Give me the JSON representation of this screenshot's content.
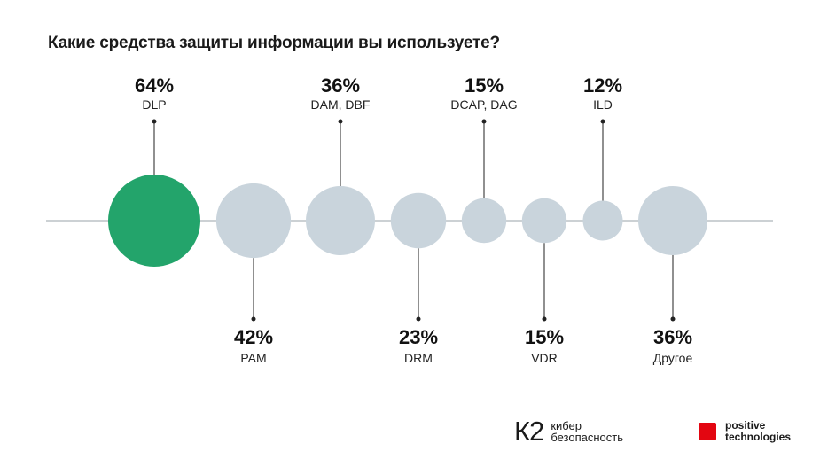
{
  "title": "Какие средства защиты информации вы используете?",
  "chart_data": {
    "type": "bubble",
    "title": "Какие средства защиты информации вы используете?",
    "categories": [
      "DLP",
      "PAM",
      "DAM, DBF",
      "DRM",
      "DCAP, DAG",
      "VDR",
      "ILD",
      "Другое"
    ],
    "values": [
      64,
      42,
      36,
      23,
      15,
      15,
      12,
      36
    ],
    "value_labels": [
      "64%",
      "42%",
      "36%",
      "23%",
      "15%",
      "15%",
      "12%",
      "36%"
    ],
    "label_side": [
      "top",
      "bottom",
      "top",
      "bottom",
      "top",
      "bottom",
      "top",
      "bottom"
    ],
    "highlight_index": 0
  },
  "colors": {
    "highlight": "#23a46b",
    "bubble": "#c9d4dc",
    "axis": "#9aa3aa",
    "stem": "#222222",
    "brand_red": "#e30611"
  },
  "footer": {
    "k2_mark": "К2",
    "k2_line1": "кибер",
    "k2_line2": "безопасность",
    "pt_line1": "positive",
    "pt_line2": "technologies"
  }
}
